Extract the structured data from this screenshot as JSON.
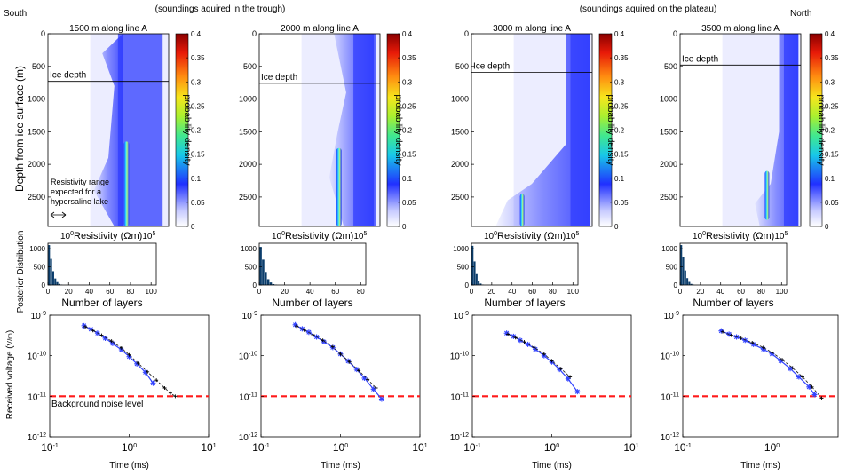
{
  "figure": {
    "south_label": "South",
    "north_label": "North",
    "group_left_caption": "(soundings aquired in the trough)",
    "group_right_caption": "(soundings aquired on the plateau)",
    "depth_ylabel": "Depth from ice surface (m)",
    "hist_ylabel": "Posterior Distribution",
    "voltage_ylabel_main": "Received voltage (",
    "voltage_ylabel_unit": "V/m",
    "voltage_ylabel_close": ")",
    "colorbar_label": "probability density",
    "ice_depth_label": "Ice depth",
    "resistivity_note": [
      "Resistivity range",
      "expected for a",
      "hypersaline lake"
    ],
    "background_noise_label": "Background noise level"
  },
  "colors": {
    "model_blue": "#2f3cff",
    "model_light": "#c9ccff",
    "noise_red": "#ff1a1a",
    "hist_bar": "#0b3d6b",
    "data_marker": "#3344ff"
  },
  "chart_data": [
    {
      "type": "heatmap",
      "position": "1500 m along line A",
      "title": "1500 m along line A",
      "xlabel": "Resistivity (Ωm)",
      "x_ticks": [
        "10^0",
        "10^5"
      ],
      "ylabel": "Depth from ice surface (m)",
      "y_ticks": [
        0,
        500,
        1000,
        1500,
        2000,
        2500
      ],
      "ylim": [
        0,
        2950
      ],
      "ice_depth_m": 730,
      "colorbar": {
        "label": "probability density",
        "range": [
          0,
          0.4
        ],
        "ticks": [
          0,
          0.05,
          0.1,
          0.15,
          0.2,
          0.25,
          0.3,
          0.35,
          0.4
        ]
      }
    },
    {
      "type": "heatmap",
      "position": "2000 m along line A",
      "title": "2000 m along line A",
      "xlabel": "Resistivity (Ωm)",
      "x_ticks": [
        "10^0",
        "10^5"
      ],
      "ylabel": "",
      "y_ticks": [
        0,
        500,
        1000,
        1500,
        2000,
        2500
      ],
      "ylim": [
        0,
        2950
      ],
      "ice_depth_m": 760,
      "colorbar": {
        "label": "probability density",
        "range": [
          0,
          0.4
        ],
        "ticks": [
          0,
          0.05,
          0.1,
          0.15,
          0.2,
          0.25,
          0.3,
          0.35,
          0.4
        ]
      }
    },
    {
      "type": "heatmap",
      "position": "3000 m along line A",
      "title": "3000 m along line A",
      "xlabel": "Resistivity (Ωm)",
      "x_ticks": [
        "10^0",
        "10^5"
      ],
      "ylabel": "",
      "y_ticks": [
        0,
        500,
        1000,
        1500,
        2000,
        2500
      ],
      "ylim": [
        0,
        2950
      ],
      "ice_depth_m": 590,
      "colorbar": {
        "label": "probability density",
        "range": [
          0,
          0.4
        ],
        "ticks": [
          0,
          0.05,
          0.1,
          0.15,
          0.2,
          0.25,
          0.3,
          0.35,
          0.4
        ]
      }
    },
    {
      "type": "heatmap",
      "position": "3500 m along line A",
      "title": "3500 m along line A",
      "xlabel": "Resistivity (Ωm)",
      "x_ticks": [
        "10^0",
        "10^5"
      ],
      "ylabel": "",
      "y_ticks": [
        0,
        500,
        1000,
        1500,
        2000,
        2500
      ],
      "ylim": [
        0,
        2950
      ],
      "ice_depth_m": 480,
      "colorbar": {
        "label": "probability density",
        "range": [
          0,
          0.4
        ],
        "ticks": [
          0,
          0.05,
          0.1,
          0.15,
          0.2,
          0.25,
          0.3,
          0.35,
          0.4
        ]
      }
    },
    {
      "type": "bar",
      "xlabel": "Number of layers",
      "ylabel": "Posterior Distribution",
      "x_ticks": [
        0,
        20,
        40,
        60,
        80,
        100
      ],
      "xlim": [
        0,
        105
      ],
      "y_ticks": [
        0,
        500,
        1000
      ],
      "ylim": [
        0,
        1150
      ],
      "x": [
        2,
        4,
        6,
        8,
        10,
        12,
        14
      ],
      "values": [
        1100,
        720,
        380,
        180,
        80,
        30,
        10
      ]
    },
    {
      "type": "bar",
      "xlabel": "Number of layers",
      "ylabel": "",
      "x_ticks": [
        0,
        20,
        40,
        60,
        80
      ],
      "xlim": [
        0,
        84
      ],
      "y_ticks": [
        0,
        500,
        1000
      ],
      "ylim": [
        0,
        1150
      ],
      "x": [
        2,
        4,
        6,
        8,
        10,
        12,
        14
      ],
      "values": [
        1050,
        700,
        360,
        160,
        70,
        25,
        8
      ]
    },
    {
      "type": "bar",
      "xlabel": "Number of layers",
      "ylabel": "",
      "x_ticks": [
        0,
        20,
        40,
        60,
        80,
        100
      ],
      "xlim": [
        0,
        105
      ],
      "y_ticks": [
        0,
        500,
        1000
      ],
      "ylim": [
        0,
        1150
      ],
      "x": [
        2,
        4,
        6,
        8,
        10,
        12
      ],
      "values": [
        1080,
        650,
        300,
        120,
        40,
        12
      ]
    },
    {
      "type": "bar",
      "xlabel": "Number of layers",
      "ylabel": "",
      "x_ticks": [
        0,
        20,
        40,
        60,
        80,
        100
      ],
      "xlim": [
        0,
        105
      ],
      "y_ticks": [
        0,
        500,
        1000
      ],
      "ylim": [
        0,
        1150
      ],
      "x": [
        2,
        4,
        6,
        8,
        10,
        12,
        14
      ],
      "values": [
        1100,
        760,
        400,
        190,
        85,
        30,
        10
      ]
    },
    {
      "type": "scatter",
      "xlabel": "Time (ms)",
      "ylabel": "Received voltage (V/m)",
      "x_scale": "log",
      "y_scale": "log",
      "xlim": [
        0.1,
        10
      ],
      "ylim": [
        1e-12,
        1e-09
      ],
      "x_ticks": [
        "10^-1",
        "10^0",
        "10^1"
      ],
      "y_ticks": [
        "10^-9",
        "10^-10",
        "10^-11",
        "10^-12"
      ],
      "noise_level": 1e-11,
      "series": [
        {
          "name": "",
          "x": [
            0.27,
            0.33,
            0.4,
            0.5,
            0.62,
            0.8,
            1.0,
            1.25,
            1.6,
            2.0
          ],
          "values": [
            5.5e-10,
            4.5e-10,
            3.6e-10,
            2.7e-10,
            2e-10,
            1.4e-10,
            9.5e-11,
            6.3e-11,
            3.9e-11,
            2.1e-11
          ]
        },
        {
          "name": "",
          "x": [
            0.28,
            0.35,
            0.45,
            0.6,
            0.8,
            1.0,
            1.3,
            1.7,
            2.2,
            2.8,
            3.3,
            3.8
          ],
          "values": [
            5.2e-10,
            4.2e-10,
            3.2e-10,
            2.3e-10,
            1.55e-10,
            1.05e-10,
            6.5e-11,
            4e-11,
            2.5e-11,
            1.6e-11,
            1.2e-11,
            1e-11
          ]
        }
      ]
    },
    {
      "type": "scatter",
      "xlabel": "Time (ms)",
      "ylabel": "",
      "x_scale": "log",
      "y_scale": "log",
      "xlim": [
        0.1,
        10
      ],
      "ylim": [
        1e-12,
        1e-09
      ],
      "x_ticks": [
        "10^-1",
        "10^0",
        "10^1"
      ],
      "y_ticks": [
        "10^-9",
        "10^-10",
        "10^-11",
        "10^-12"
      ],
      "noise_level": 1e-11,
      "series": [
        {
          "name": "",
          "x": [
            0.27,
            0.33,
            0.4,
            0.5,
            0.62,
            0.8,
            1.0,
            1.25,
            1.6,
            2.0,
            2.6,
            3.3
          ],
          "values": [
            5.8e-10,
            4.6e-10,
            3.8e-10,
            2.9e-10,
            2.2e-10,
            1.6e-10,
            1.1e-10,
            7.4e-11,
            4.6e-11,
            2.8e-11,
            1.5e-11,
            8.5e-12
          ]
        },
        {
          "name": "",
          "x": [
            0.28,
            0.35,
            0.45,
            0.6,
            0.8,
            1.0,
            1.3,
            1.7,
            2.2,
            2.8
          ],
          "values": [
            5.4e-10,
            4.3e-10,
            3.3e-10,
            2.4e-10,
            1.65e-10,
            1.1e-10,
            7e-11,
            4.3e-11,
            2.6e-11,
            1.6e-11
          ]
        }
      ]
    },
    {
      "type": "scatter",
      "xlabel": "Time (ms)",
      "ylabel": "",
      "x_scale": "log",
      "y_scale": "log",
      "xlim": [
        0.1,
        10
      ],
      "ylim": [
        1e-12,
        1e-09
      ],
      "x_ticks": [
        "10^-1",
        "10^0",
        "10^1"
      ],
      "y_ticks": [
        "10^-9",
        "10^-10",
        "10^-11",
        "10^-12"
      ],
      "noise_level": 1e-11,
      "series": [
        {
          "name": "",
          "x": [
            0.27,
            0.33,
            0.4,
            0.5,
            0.62,
            0.8,
            1.0,
            1.25,
            1.6,
            2.1
          ],
          "values": [
            3.6e-10,
            3e-10,
            2.4e-10,
            1.9e-10,
            1.45e-10,
            1e-10,
            7e-11,
            4.6e-11,
            2.7e-11,
            1.3e-11
          ]
        },
        {
          "name": "",
          "x": [
            0.28,
            0.35,
            0.45,
            0.6,
            0.8,
            1.0,
            1.3,
            1.7
          ],
          "values": [
            3.4e-10,
            2.8e-10,
            2.2e-10,
            1.6e-10,
            1.1e-10,
            7.5e-11,
            4.8e-11,
            3e-11
          ]
        }
      ]
    },
    {
      "type": "scatter",
      "xlabel": "Time (ms)",
      "ylabel": "",
      "x_scale": "log",
      "y_scale": "log",
      "xlim": [
        0.1,
        5.5
      ],
      "ylim": [
        1e-12,
        1e-09
      ],
      "x_ticks": [
        "10^-1",
        "10^0"
      ],
      "y_ticks": [
        "10^-9",
        "10^-10",
        "10^-11",
        "10^-12"
      ],
      "noise_level": 1e-11,
      "series": [
        {
          "name": "",
          "x": [
            0.27,
            0.33,
            0.4,
            0.5,
            0.62,
            0.8,
            1.0,
            1.25,
            1.6,
            2.0,
            2.6,
            3.0
          ],
          "values": [
            4.1e-10,
            3.4e-10,
            2.9e-10,
            2.4e-10,
            1.9e-10,
            1.45e-10,
            1.1e-10,
            7.5e-11,
            4.8e-11,
            3e-11,
            1.7e-11,
            1.1e-11
          ]
        },
        {
          "name": "",
          "x": [
            0.28,
            0.35,
            0.45,
            0.6,
            0.8,
            1.0,
            1.3,
            1.7,
            2.2,
            2.8,
            3.6
          ],
          "values": [
            3.9e-10,
            3.2e-10,
            2.7e-10,
            2.1e-10,
            1.6e-10,
            1.2e-10,
            8e-11,
            5e-11,
            3e-11,
            1.7e-11,
            9e-12
          ]
        }
      ]
    }
  ]
}
